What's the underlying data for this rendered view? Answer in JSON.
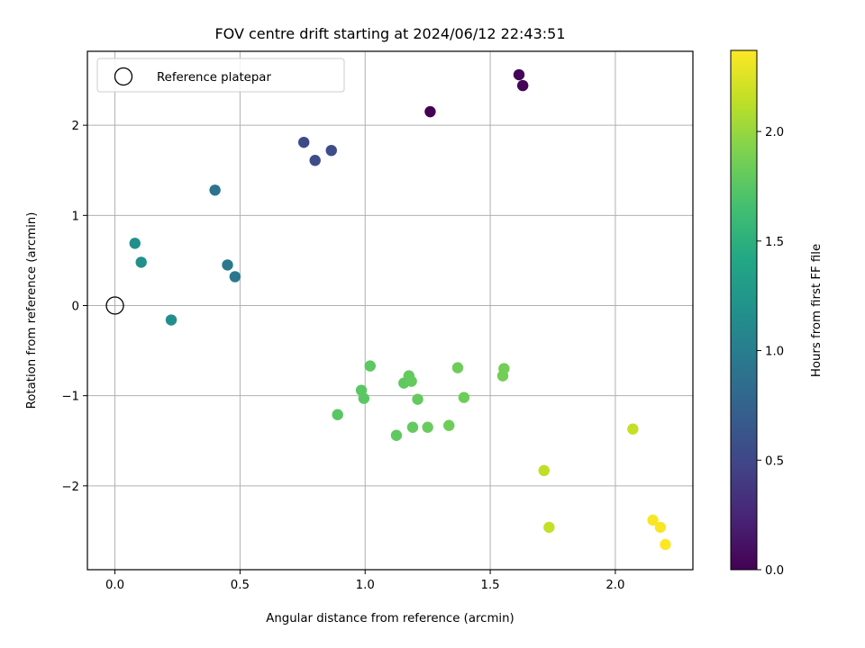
{
  "chart_data": {
    "type": "scatter",
    "title": "FOV centre drift starting at 2024/06/12 22:43:51",
    "xlabel": "Angular distance from reference (arcmin)",
    "ylabel": "Rotation from reference (arcmin)",
    "xlim": [
      -0.11,
      2.31
    ],
    "ylim": [
      -2.93,
      2.82
    ],
    "xticks": [
      0.0,
      0.5,
      1.0,
      1.5,
      2.0
    ],
    "xtick_labels": [
      "0.0",
      "0.5",
      "1.0",
      "1.5",
      "2.0"
    ],
    "yticks": [
      -2,
      -1,
      0,
      1,
      2
    ],
    "ytick_labels": [
      "−2",
      "−1",
      "0",
      "1",
      "2"
    ],
    "grid": true,
    "legend": {
      "placement": "top-left",
      "entries": [
        "Reference platepar"
      ]
    },
    "reference_point": {
      "name": "Reference platepar",
      "x": 0.0,
      "y": 0.0
    },
    "colorbar": {
      "label": "Hours from first FF file",
      "colormap": "viridis",
      "range": [
        0.0,
        2.37
      ],
      "ticks": [
        0.0,
        0.5,
        1.0,
        1.5,
        2.0
      ],
      "tick_labels": [
        "0.0",
        "0.5",
        "1.0",
        "1.5",
        "2.0"
      ]
    },
    "points": [
      {
        "x": 1.26,
        "y": 2.15,
        "hours": 0.0
      },
      {
        "x": 1.615,
        "y": 2.56,
        "hours": 0.02
      },
      {
        "x": 1.63,
        "y": 2.44,
        "hours": 0.03
      },
      {
        "x": 0.755,
        "y": 1.81,
        "hours": 0.53
      },
      {
        "x": 0.8,
        "y": 1.61,
        "hours": 0.55
      },
      {
        "x": 0.865,
        "y": 1.72,
        "hours": 0.55
      },
      {
        "x": 0.4,
        "y": 1.28,
        "hours": 0.9
      },
      {
        "x": 0.45,
        "y": 0.45,
        "hours": 0.95
      },
      {
        "x": 0.48,
        "y": 0.32,
        "hours": 0.95
      },
      {
        "x": 0.08,
        "y": 0.69,
        "hours": 1.18
      },
      {
        "x": 0.105,
        "y": 0.48,
        "hours": 1.18
      },
      {
        "x": 0.225,
        "y": -0.16,
        "hours": 1.16
      },
      {
        "x": 0.89,
        "y": -1.21,
        "hours": 1.75
      },
      {
        "x": 0.985,
        "y": -0.94,
        "hours": 1.76
      },
      {
        "x": 0.995,
        "y": -1.03,
        "hours": 1.76
      },
      {
        "x": 1.02,
        "y": -0.67,
        "hours": 1.77
      },
      {
        "x": 1.125,
        "y": -1.44,
        "hours": 1.78
      },
      {
        "x": 1.155,
        "y": -0.86,
        "hours": 1.78
      },
      {
        "x": 1.175,
        "y": -0.78,
        "hours": 1.8
      },
      {
        "x": 1.185,
        "y": -0.84,
        "hours": 1.8
      },
      {
        "x": 1.19,
        "y": -1.35,
        "hours": 1.8
      },
      {
        "x": 1.21,
        "y": -1.04,
        "hours": 1.8
      },
      {
        "x": 1.25,
        "y": -1.35,
        "hours": 1.82
      },
      {
        "x": 1.335,
        "y": -1.33,
        "hours": 1.84
      },
      {
        "x": 1.37,
        "y": -0.69,
        "hours": 1.84
      },
      {
        "x": 1.395,
        "y": -1.02,
        "hours": 1.84
      },
      {
        "x": 1.55,
        "y": -0.78,
        "hours": 1.86
      },
      {
        "x": 1.555,
        "y": -0.7,
        "hours": 1.86
      },
      {
        "x": 1.715,
        "y": -1.83,
        "hours": 2.14
      },
      {
        "x": 1.735,
        "y": -2.46,
        "hours": 2.16
      },
      {
        "x": 2.07,
        "y": -1.37,
        "hours": 2.16
      },
      {
        "x": 2.15,
        "y": -2.38,
        "hours": 2.35
      },
      {
        "x": 2.18,
        "y": -2.46,
        "hours": 2.35
      },
      {
        "x": 2.2,
        "y": -2.65,
        "hours": 2.37
      }
    ]
  }
}
